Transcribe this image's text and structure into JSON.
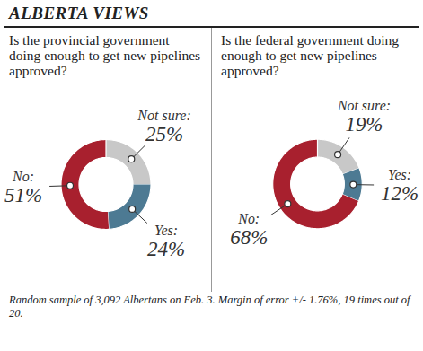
{
  "title": "ALBERTA VIEWS",
  "caption": "Random sample of 3,092 Albertans on Feb. 3. Margin of error +/- 1.76%, 19 times out of 20.",
  "chart_data": [
    {
      "type": "pie",
      "title": "Is the provincial government doing enough to get new pipelines approved?",
      "categories": [
        "Not sure:",
        "Yes:",
        "No:"
      ],
      "values": [
        25,
        24,
        51
      ],
      "value_labels": [
        "25%",
        "24%",
        "51%"
      ],
      "colors": [
        "#c8c8c8",
        "#4d7a93",
        "#a8202e"
      ],
      "data_labels": true
    },
    {
      "type": "pie",
      "title": "Is the federal government doing enough to get new pipelines approved?",
      "categories": [
        "Not sure:",
        "Yes:",
        "No:"
      ],
      "values": [
        19,
        12,
        68
      ],
      "value_labels": [
        "19%",
        "12%",
        "68%"
      ],
      "colors": [
        "#c8c8c8",
        "#4d7a93",
        "#a8202e"
      ],
      "data_labels": true
    }
  ]
}
